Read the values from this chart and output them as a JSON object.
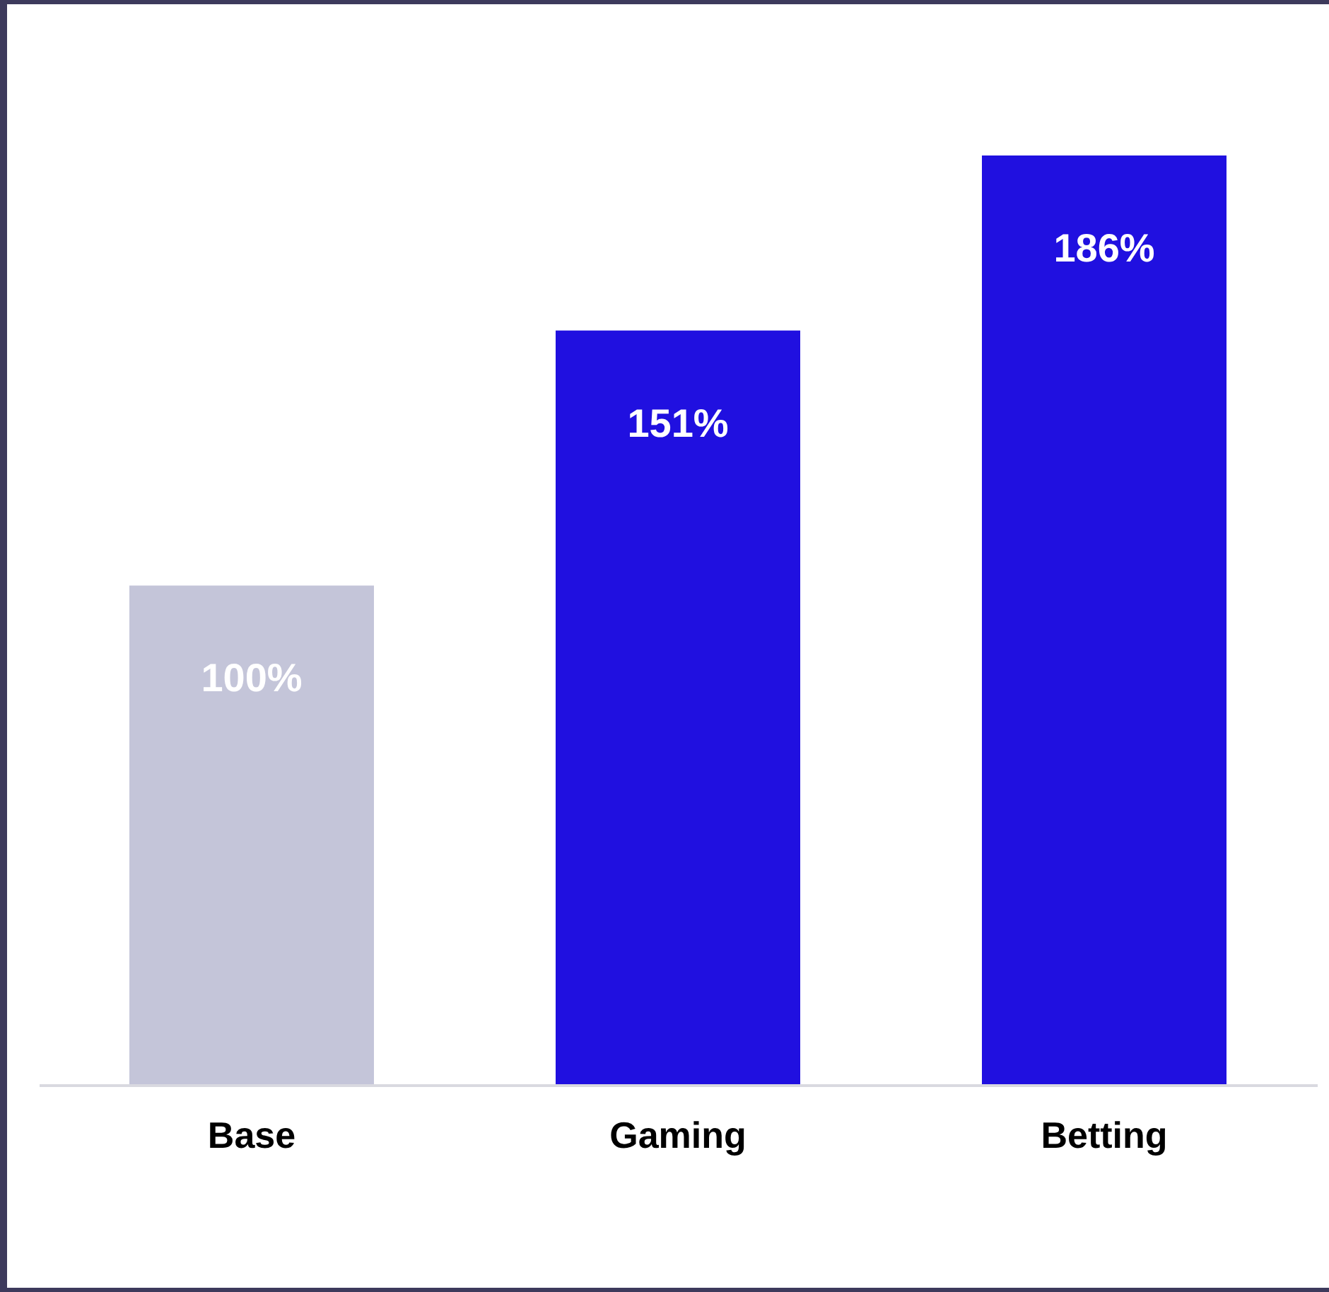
{
  "chart_data": {
    "type": "bar",
    "categories": [
      "Base",
      "Gaming",
      "Betting"
    ],
    "values": [
      100,
      151,
      186
    ],
    "colors": [
      "#c4c5d9",
      "#2010e0",
      "#2010e0"
    ],
    "data_labels": true,
    "value_labels": [
      "100%",
      "151%",
      "186%"
    ]
  }
}
